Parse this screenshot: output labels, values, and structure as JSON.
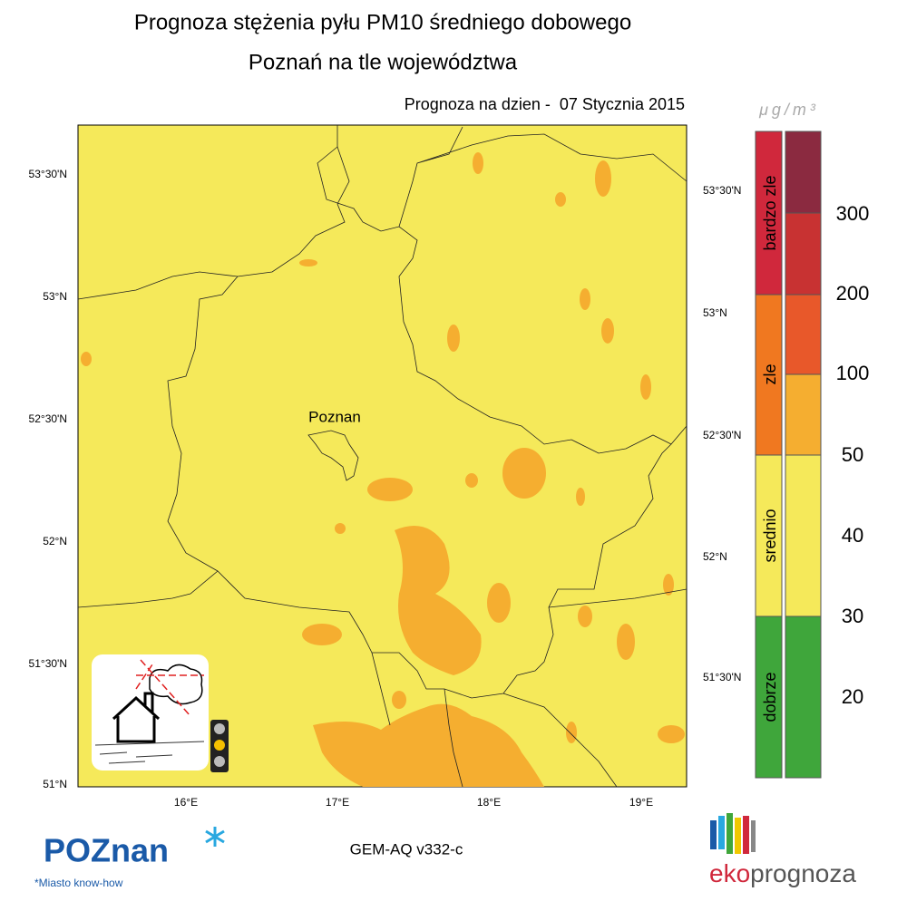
{
  "header": {
    "title": "Prognoza stężenia pyłu PM10 średniego dobowego",
    "subtitle": "Poznań na tle województwa",
    "date": "Prognoza na dzien -  07 Stycznia 2015"
  },
  "map": {
    "city_label": "Poznan",
    "lat_labels_left": [
      "53°30'N",
      "53°N",
      "52°30'N",
      "52°N",
      "51°30'N",
      "51°N"
    ],
    "lat_labels_right": [
      "53°30'N",
      "53°N",
      "52°30'N",
      "52°N",
      "51°30'N"
    ],
    "lon_labels": [
      "16°E",
      "17°E",
      "18°E",
      "19°E"
    ]
  },
  "legend": {
    "unit": "μg/m³",
    "categories": [
      "bardzo zle",
      "zle",
      "srednio",
      "dobrze"
    ],
    "scale": [
      300,
      200,
      100,
      50,
      40,
      30,
      20
    ]
  },
  "footer": {
    "model": "GEM-AQ v332-c",
    "city_logo": "POZnan",
    "city_slogan": "*Miasto know-how",
    "brand_prefix": "eko",
    "brand_suffix": "prognoza"
  }
}
